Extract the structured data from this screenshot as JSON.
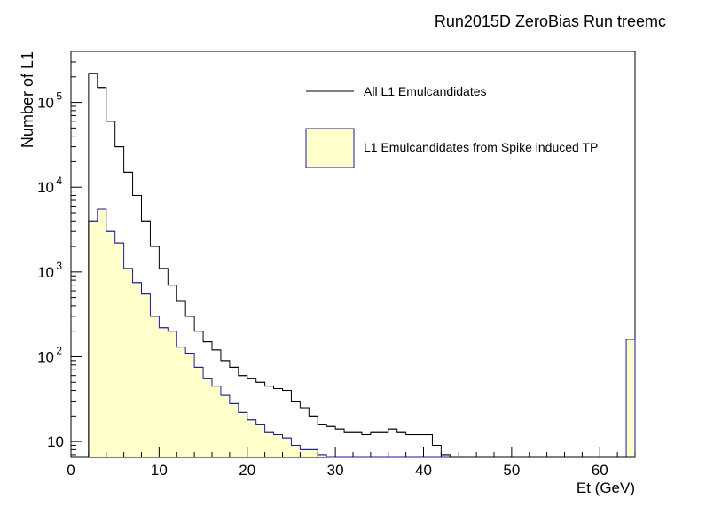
{
  "chart_data": {
    "type": "histogram",
    "title": "Run2015D ZeroBias Run treemc",
    "xlabel": "Et (GeV)",
    "ylabel": "Number of L1",
    "xlim": [
      0,
      64
    ],
    "ylim": [
      6.5,
      400000
    ],
    "yscale": "log",
    "grid": false,
    "legend_position": "top-right",
    "x_ticks": [
      0,
      10,
      20,
      30,
      40,
      50,
      60
    ],
    "y_ticks": [
      {
        "value": 10,
        "label": "10"
      },
      {
        "value": 100,
        "label": "10",
        "sup": "2"
      },
      {
        "value": 1000,
        "label": "10",
        "sup": "3"
      },
      {
        "value": 10000,
        "label": "10",
        "sup": "4"
      },
      {
        "value": 100000,
        "label": "10",
        "sup": "5"
      }
    ],
    "bin_width": 1,
    "bin_start": 0,
    "series": [
      {
        "name": "All L1 Emulcandidates",
        "style": "line",
        "color": "#000000",
        "values": [
          0,
          0,
          220000,
          150000,
          60000,
          30000,
          15000,
          8000,
          4000,
          2000,
          1100,
          700,
          450,
          300,
          200,
          150,
          120,
          90,
          75,
          60,
          55,
          50,
          45,
          42,
          40,
          30,
          25,
          20,
          16,
          15,
          14,
          13,
          13,
          12,
          13,
          13,
          14,
          13,
          12,
          12,
          12,
          9,
          7,
          6,
          6,
          6,
          6,
          6,
          6,
          6,
          6,
          6,
          6,
          6,
          6,
          6,
          6,
          6,
          6,
          6,
          6,
          6,
          6,
          6
        ]
      },
      {
        "name": "L1 Emulcandidates from Spike induced TP",
        "style": "filled",
        "color": "#1a1a9e",
        "fill": "#ffffcc",
        "values": [
          0,
          0,
          4000,
          5500,
          3000,
          2200,
          1100,
          750,
          550,
          300,
          220,
          200,
          130,
          110,
          75,
          55,
          45,
          35,
          28,
          22,
          18,
          16,
          13,
          12,
          11,
          9,
          8,
          8,
          7,
          6,
          6,
          6,
          6,
          6,
          6,
          6,
          6,
          6,
          6,
          6,
          6,
          6,
          6,
          6,
          6,
          6,
          6,
          6,
          6,
          6,
          6,
          6,
          6,
          6,
          6,
          6,
          6,
          6,
          6,
          6,
          6,
          6,
          6,
          160
        ]
      }
    ]
  }
}
